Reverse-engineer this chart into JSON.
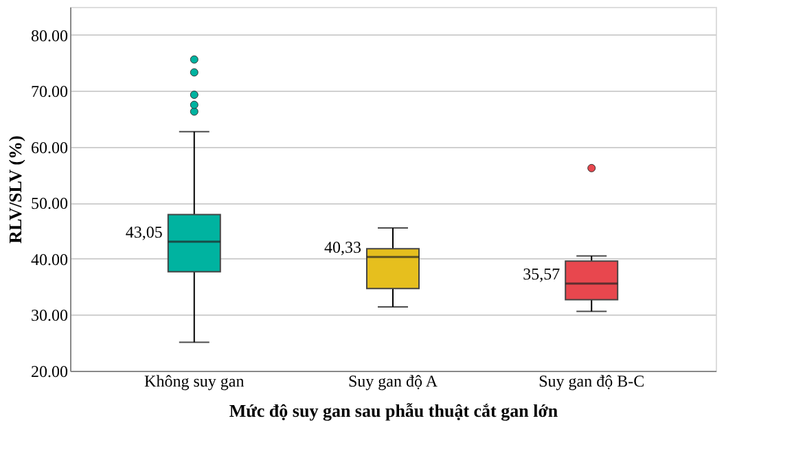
{
  "chart_data": {
    "type": "box",
    "xlabel": "Mức độ suy gan sau phẫu thuật cắt gan lớn",
    "ylabel": "RLV/SLV (%)",
    "categories": [
      "Không suy gan",
      "Suy gan độ A",
      "Suy gan độ B-C"
    ],
    "colors": [
      "#00b3a0",
      "#e6bf1e",
      "#e8474e"
    ],
    "boxes": [
      {
        "low": 25.1,
        "q1": 37.7,
        "median": 43.05,
        "q3": 47.9,
        "high": 62.7,
        "outliers": [
          66.3,
          67.5,
          69.3,
          73.3,
          75.6
        ]
      },
      {
        "low": 31.4,
        "q1": 34.7,
        "median": 40.33,
        "q3": 41.8,
        "high": 45.5
      },
      {
        "low": 30.6,
        "q1": 32.7,
        "median": 35.57,
        "q3": 39.6,
        "high": 40.5,
        "outliers": [
          56.2
        ]
      }
    ],
    "annotations": [
      {
        "text": "43,05",
        "x": "Không suy gan",
        "y": 43.05
      },
      {
        "text": "40,33",
        "x": "Suy gan độ A",
        "y": 40.33
      },
      {
        "text": "35,57",
        "x": "Suy gan độ B-C",
        "y": 35.57
      }
    ],
    "ylim": [
      20,
      85
    ],
    "yticks": [
      {
        "value": 20,
        "label": "20.00"
      },
      {
        "value": 30,
        "label": "30.00"
      },
      {
        "value": 40,
        "label": "40.00"
      },
      {
        "value": 50,
        "label": "50.00"
      },
      {
        "value": 60,
        "label": "60.00"
      },
      {
        "value": 70,
        "label": "70.00"
      },
      {
        "value": 80,
        "label": "80.00"
      }
    ],
    "grid": "y"
  }
}
